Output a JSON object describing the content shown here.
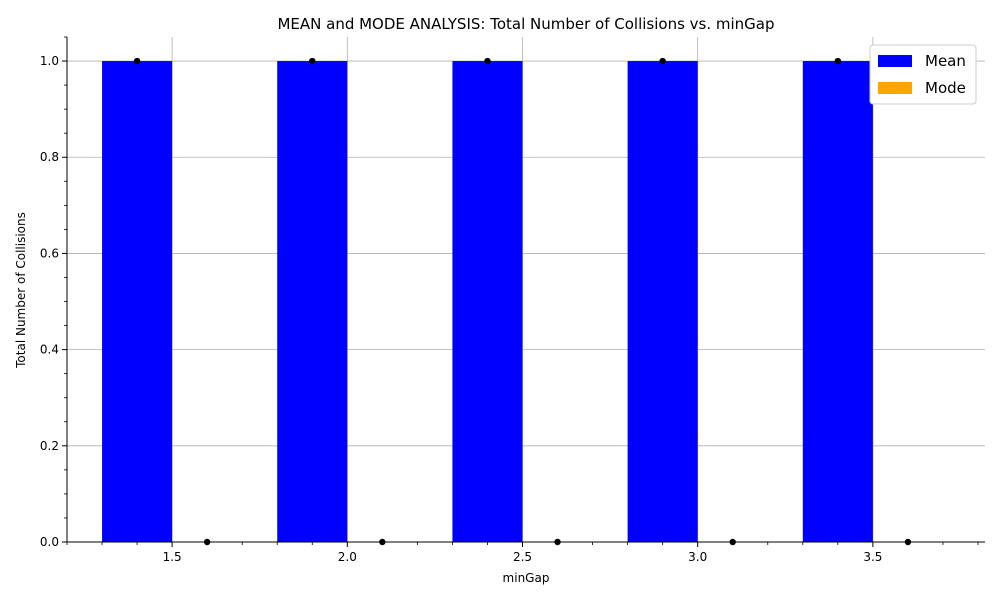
{
  "chart_data": {
    "type": "bar",
    "title": "MEAN and MODE ANALYSIS: Total Number of Collisions vs. minGap",
    "xlabel": "minGap",
    "ylabel": "Total Number of Collisions",
    "x": [
      1.5,
      2.0,
      2.5,
      3.0,
      3.5
    ],
    "xlim": [
      1.2,
      3.82
    ],
    "ylim": [
      0.0,
      1.05
    ],
    "xticks": [
      "1.5",
      "2.0",
      "2.5",
      "3.0",
      "3.5"
    ],
    "yticks": [
      "0.0",
      "0.2",
      "0.4",
      "0.6",
      "0.8",
      "1.0"
    ],
    "series": [
      {
        "name": "Mean",
        "color": "#0000ff",
        "values": [
          1,
          1,
          1,
          1,
          1
        ]
      },
      {
        "name": "Mode",
        "color": "#ffa500",
        "values": [
          0,
          0,
          0,
          0,
          0
        ]
      }
    ],
    "error_markers_color": "#000000",
    "grid": true,
    "legend_position": "top-right"
  }
}
